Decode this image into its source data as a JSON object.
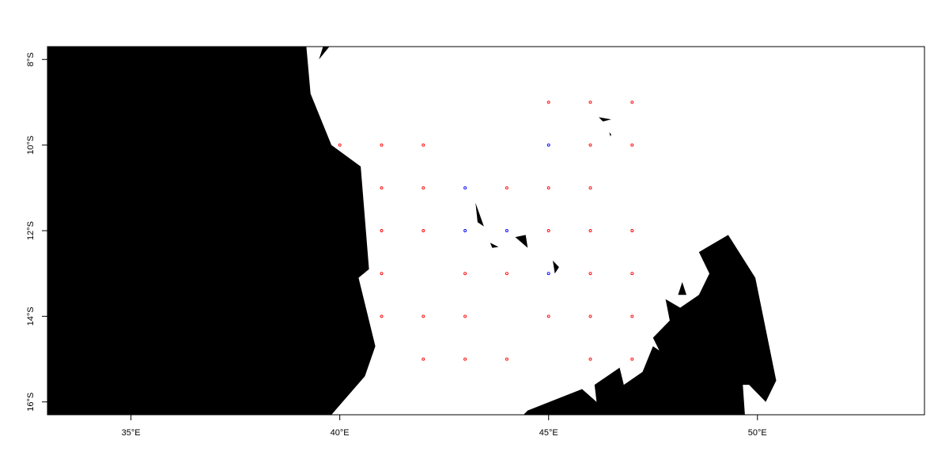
{
  "map": {
    "projection": "lon-lat",
    "lon_range": [
      33,
      54
    ],
    "lat_range": [
      -16.3,
      -7.7
    ],
    "land_color": "#000000",
    "ocean_color": "#ffffff",
    "frame_color": "#000000",
    "x_axis": {
      "ticks": [
        {
          "value": 35,
          "label": "35°E"
        },
        {
          "value": 40,
          "label": "40°E"
        },
        {
          "value": 45,
          "label": "45°E"
        },
        {
          "value": 50,
          "label": "50°E"
        }
      ]
    },
    "y_axis": {
      "ticks": [
        {
          "value": -8,
          "label": "8°S"
        },
        {
          "value": -10,
          "label": "10°S"
        },
        {
          "value": -12,
          "label": "12°S"
        },
        {
          "value": -14,
          "label": "14°S"
        },
        {
          "value": -16,
          "label": "16°S"
        }
      ]
    },
    "land_polygons": [
      {
        "name": "africa-mainland",
        "coords": [
          [
            33,
            -7.7
          ],
          [
            39.2,
            -7.7
          ],
          [
            39.3,
            -8.8
          ],
          [
            39.8,
            -10.0
          ],
          [
            40.5,
            -10.5
          ],
          [
            40.7,
            -12.9
          ],
          [
            40.45,
            -13.1
          ],
          [
            40.85,
            -14.7
          ],
          [
            40.6,
            -15.4
          ],
          [
            39.8,
            -16.3
          ],
          [
            33,
            -16.3
          ]
        ]
      },
      {
        "name": "coast-fragment-north",
        "coords": [
          [
            39.6,
            -7.7
          ],
          [
            39.75,
            -7.7
          ],
          [
            39.5,
            -8.0
          ]
        ]
      },
      {
        "name": "comoros-grande-comore",
        "coords": [
          [
            43.25,
            -11.35
          ],
          [
            43.45,
            -11.9
          ],
          [
            43.3,
            -11.8
          ]
        ]
      },
      {
        "name": "comoros-moheli",
        "coords": [
          [
            43.6,
            -12.28
          ],
          [
            43.8,
            -12.38
          ],
          [
            43.65,
            -12.4
          ]
        ]
      },
      {
        "name": "comoros-anjouan",
        "coords": [
          [
            44.2,
            -12.15
          ],
          [
            44.45,
            -12.1
          ],
          [
            44.5,
            -12.4
          ]
        ]
      },
      {
        "name": "mayotte",
        "coords": [
          [
            45.1,
            -12.7
          ],
          [
            45.25,
            -12.85
          ],
          [
            45.15,
            -13.0
          ]
        ]
      },
      {
        "name": "islet-north-1",
        "coords": [
          [
            46.2,
            -9.35
          ],
          [
            46.5,
            -9.4
          ],
          [
            46.3,
            -9.45
          ]
        ]
      },
      {
        "name": "islet-north-2",
        "coords": [
          [
            46.45,
            -9.7
          ],
          [
            46.5,
            -9.75
          ],
          [
            46.48,
            -9.8
          ]
        ]
      },
      {
        "name": "madagascar-north",
        "coords": [
          [
            44.4,
            -16.3
          ],
          [
            44.5,
            -16.2
          ],
          [
            45.8,
            -15.7
          ],
          [
            46.15,
            -16.0
          ],
          [
            46.1,
            -15.6
          ],
          [
            46.7,
            -15.2
          ],
          [
            46.8,
            -15.6
          ],
          [
            47.25,
            -15.3
          ],
          [
            47.5,
            -14.7
          ],
          [
            47.65,
            -14.8
          ],
          [
            47.5,
            -14.5
          ],
          [
            47.9,
            -14.1
          ],
          [
            47.8,
            -13.6
          ],
          [
            48.15,
            -13.8
          ],
          [
            48.6,
            -13.5
          ],
          [
            48.85,
            -13.0
          ],
          [
            48.6,
            -12.5
          ],
          [
            49.3,
            -12.1
          ],
          [
            49.95,
            -13.1
          ],
          [
            50.45,
            -15.5
          ],
          [
            50.2,
            -16.0
          ],
          [
            49.8,
            -15.6
          ],
          [
            49.65,
            -15.6
          ],
          [
            49.7,
            -16.3
          ]
        ]
      },
      {
        "name": "madagascar-islet",
        "coords": [
          [
            48.1,
            -13.5
          ],
          [
            48.2,
            -13.2
          ],
          [
            48.3,
            -13.5
          ]
        ]
      }
    ],
    "stations": [
      {
        "lon": 45,
        "lat": -9,
        "color": "#ff0000"
      },
      {
        "lon": 46,
        "lat": -9,
        "color": "#ff0000"
      },
      {
        "lon": 47,
        "lat": -9,
        "color": "#ff0000"
      },
      {
        "lon": 40,
        "lat": -10,
        "color": "#ff0000"
      },
      {
        "lon": 41,
        "lat": -10,
        "color": "#ff0000"
      },
      {
        "lon": 42,
        "lat": -10,
        "color": "#ff0000"
      },
      {
        "lon": 45,
        "lat": -10,
        "color": "#0000ff"
      },
      {
        "lon": 46,
        "lat": -10,
        "color": "#ff0000"
      },
      {
        "lon": 47,
        "lat": -10,
        "color": "#ff0000"
      },
      {
        "lon": 41,
        "lat": -11,
        "color": "#ff0000"
      },
      {
        "lon": 42,
        "lat": -11,
        "color": "#ff0000"
      },
      {
        "lon": 43,
        "lat": -11,
        "color": "#0000ff"
      },
      {
        "lon": 44,
        "lat": -11,
        "color": "#ff0000"
      },
      {
        "lon": 45,
        "lat": -11,
        "color": "#ff0000"
      },
      {
        "lon": 46,
        "lat": -11,
        "color": "#ff0000"
      },
      {
        "lon": 41,
        "lat": -12,
        "color": "#ff0000"
      },
      {
        "lon": 42,
        "lat": -12,
        "color": "#ff0000"
      },
      {
        "lon": 43,
        "lat": -12,
        "color": "#0000ff"
      },
      {
        "lon": 44,
        "lat": -12,
        "color": "#0000ff"
      },
      {
        "lon": 45,
        "lat": -12,
        "color": "#ff0000"
      },
      {
        "lon": 46,
        "lat": -12,
        "color": "#ff0000"
      },
      {
        "lon": 47,
        "lat": -12,
        "color": "#ff0000"
      },
      {
        "lon": 41,
        "lat": -13,
        "color": "#ff0000"
      },
      {
        "lon": 43,
        "lat": -13,
        "color": "#ff0000"
      },
      {
        "lon": 44,
        "lat": -13,
        "color": "#ff0000"
      },
      {
        "lon": 45,
        "lat": -13,
        "color": "#0000ff"
      },
      {
        "lon": 46,
        "lat": -13,
        "color": "#ff0000"
      },
      {
        "lon": 47,
        "lat": -13,
        "color": "#ff0000"
      },
      {
        "lon": 41,
        "lat": -14,
        "color": "#ff0000"
      },
      {
        "lon": 42,
        "lat": -14,
        "color": "#ff0000"
      },
      {
        "lon": 43,
        "lat": -14,
        "color": "#ff0000"
      },
      {
        "lon": 45,
        "lat": -14,
        "color": "#ff0000"
      },
      {
        "lon": 46,
        "lat": -14,
        "color": "#ff0000"
      },
      {
        "lon": 47,
        "lat": -14,
        "color": "#ff0000"
      },
      {
        "lon": 42,
        "lat": -15,
        "color": "#ff0000"
      },
      {
        "lon": 43,
        "lat": -15,
        "color": "#ff0000"
      },
      {
        "lon": 44,
        "lat": -15,
        "color": "#ff0000"
      },
      {
        "lon": 46,
        "lat": -15,
        "color": "#ff0000"
      },
      {
        "lon": 47,
        "lat": -15,
        "color": "#ff0000"
      }
    ]
  }
}
